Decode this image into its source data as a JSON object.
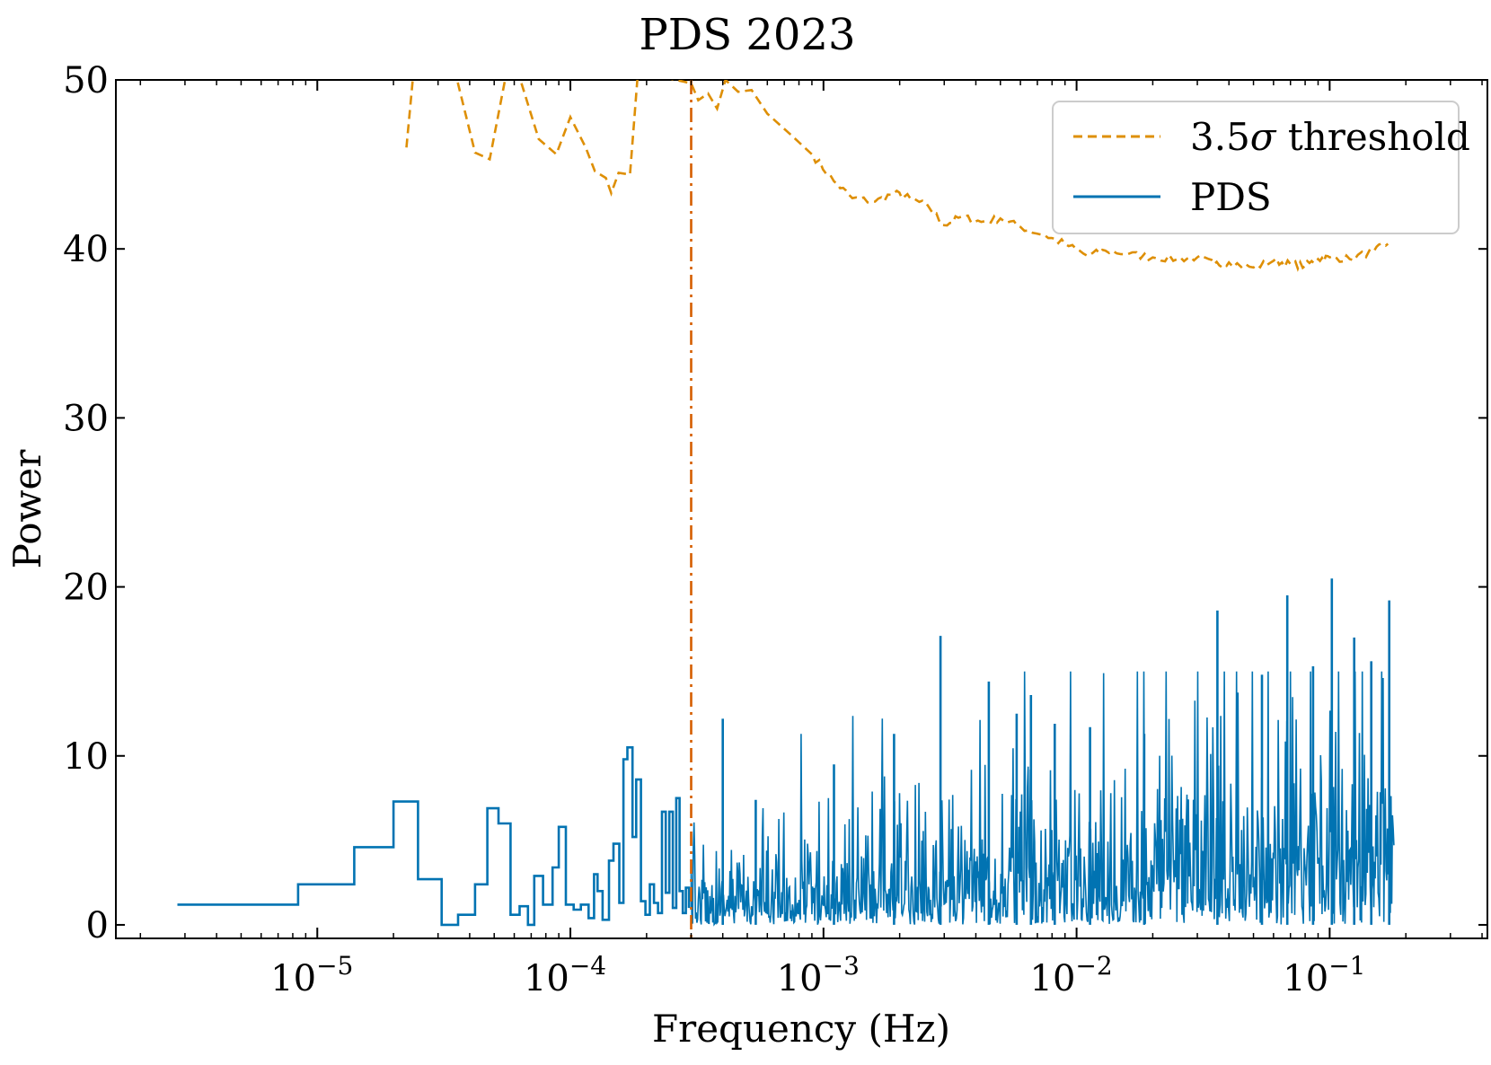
{
  "chart_data": {
    "type": "line",
    "title": "PDS 2023",
    "xlabel": "Frequency (Hz)",
    "ylabel": "Power",
    "xscale": "log",
    "xlim": [
      1.6e-06,
      0.42
    ],
    "ylim": [
      -0.8,
      50
    ],
    "grid": false,
    "legend_position": "top-right",
    "x_ticks": [
      {
        "value": 1e-05,
        "base": "10",
        "exp": "−5"
      },
      {
        "value": 0.0001,
        "base": "10",
        "exp": "−4"
      },
      {
        "value": 0.001,
        "base": "10",
        "exp": "−3"
      },
      {
        "value": 0.01,
        "base": "10",
        "exp": "−2"
      },
      {
        "value": 0.1,
        "base": "10",
        "exp": "−1"
      }
    ],
    "y_ticks": [
      0,
      10,
      20,
      30,
      40,
      50
    ],
    "vline": {
      "x": 0.0003,
      "style": "dash-dot",
      "color": "#d55e00"
    },
    "series": [
      {
        "name": "3.5σ threshold",
        "label_main": "3.5",
        "label_symbol": "σ",
        "label_rest": " threshold",
        "style": "dashed",
        "color": "#de8f05",
        "points": [
          [
            2.25e-05,
            46.0
          ],
          [
            2.4e-05,
            50.5
          ],
          [
            3.5e-05,
            50.5
          ],
          [
            4.2e-05,
            45.7
          ],
          [
            4.8e-05,
            45.3
          ],
          [
            5.6e-05,
            50.5
          ],
          [
            6.2e-05,
            50.5
          ],
          [
            7.5e-05,
            46.5
          ],
          [
            8.8e-05,
            45.6
          ],
          [
            0.0001,
            47.8
          ],
          [
            0.000115,
            46.0
          ],
          [
            0.000125,
            44.6
          ],
          [
            0.000138,
            44.2
          ],
          [
            0.000145,
            43.3
          ],
          [
            0.000155,
            44.5
          ],
          [
            0.000172,
            44.4
          ],
          [
            0.000185,
            50.5
          ],
          [
            0.0003,
            49.8
          ],
          [
            0.00032,
            48.8
          ],
          [
            0.00035,
            49.2
          ],
          [
            0.00038,
            48.3
          ],
          [
            0.00041,
            50.0
          ],
          [
            0.00046,
            49.3
          ],
          [
            0.00052,
            49.4
          ],
          [
            0.0006,
            48.0
          ],
          [
            0.00075,
            46.7
          ],
          [
            0.0009,
            45.6
          ],
          [
            0.0011,
            44.0
          ],
          [
            0.0013,
            43.0
          ],
          [
            0.0016,
            42.8
          ],
          [
            0.0019,
            43.3
          ],
          [
            0.0022,
            43.0
          ],
          [
            0.0026,
            42.5
          ],
          [
            0.003,
            41.4
          ],
          [
            0.0035,
            41.9
          ],
          [
            0.0042,
            41.6
          ],
          [
            0.005,
            41.8
          ],
          [
            0.006,
            41.3
          ],
          [
            0.0075,
            40.8
          ],
          [
            0.009,
            40.3
          ],
          [
            0.011,
            39.6
          ],
          [
            0.013,
            39.9
          ],
          [
            0.016,
            39.7
          ],
          [
            0.02,
            39.5
          ],
          [
            0.025,
            39.4
          ],
          [
            0.03,
            39.5
          ],
          [
            0.035,
            39.1
          ],
          [
            0.04,
            39.2
          ],
          [
            0.05,
            38.9
          ],
          [
            0.06,
            39.3
          ],
          [
            0.07,
            39.1
          ],
          [
            0.08,
            39.0
          ],
          [
            0.09,
            39.4
          ],
          [
            0.1,
            39.5
          ],
          [
            0.12,
            39.4
          ],
          [
            0.15,
            39.9
          ],
          [
            0.17,
            40.3
          ]
        ]
      },
      {
        "name": "PDS",
        "label_main": "PDS",
        "label_symbol": "",
        "label_rest": "",
        "style": "solid",
        "color": "#0173b2",
        "steps": [
          [
            2.8e-06,
            1.2
          ],
          [
            8.4e-06,
            2.4
          ],
          [
            1.4e-05,
            4.6
          ],
          [
            2e-05,
            7.3
          ],
          [
            2.4e-05,
            7.3
          ],
          [
            2.5e-05,
            2.7
          ],
          [
            3.1e-05,
            0.0
          ],
          [
            3.6e-05,
            0.6
          ],
          [
            4.2e-05,
            2.4
          ],
          [
            4.7e-05,
            6.9
          ],
          [
            5.2e-05,
            6.0
          ],
          [
            5.8e-05,
            0.6
          ],
          [
            6.3e-05,
            1.1
          ],
          [
            6.8e-05,
            0.0
          ],
          [
            7.2e-05,
            2.9
          ],
          [
            7.8e-05,
            1.2
          ],
          [
            8.5e-05,
            3.4
          ],
          [
            9e-05,
            5.8
          ],
          [
            9.6e-05,
            1.2
          ],
          [
            0.000103,
            0.9
          ],
          [
            0.00011,
            1.2
          ],
          [
            0.000118,
            0.4
          ],
          [
            0.000124,
            3.0
          ],
          [
            0.000128,
            2.0
          ],
          [
            0.000134,
            0.3
          ],
          [
            0.000142,
            3.8
          ],
          [
            0.000148,
            4.8
          ],
          [
            0.000156,
            1.3
          ],
          [
            0.000162,
            9.8
          ],
          [
            0.000168,
            10.5
          ],
          [
            0.000176,
            5.2
          ],
          [
            0.000182,
            8.6
          ],
          [
            0.00019,
            1.4
          ],
          [
            0.000198,
            0.6
          ],
          [
            0.000206,
            2.4
          ],
          [
            0.000214,
            1.3
          ],
          [
            0.000222,
            0.7
          ],
          [
            0.00023,
            6.7
          ],
          [
            0.000238,
            1.9
          ],
          [
            0.000246,
            6.7
          ],
          [
            0.000254,
            1.0
          ],
          [
            0.000262,
            7.5
          ],
          [
            0.00027,
            2.0
          ],
          [
            0.000278,
            0.7
          ],
          [
            0.000286,
            2.2
          ],
          [
            0.000294,
            1.0
          ]
        ]
      }
    ],
    "pds_dense": {
      "x_start": 0.0003,
      "x_end": 0.18,
      "peaks": [
        [
          0.0004,
          12.2
        ],
        [
          0.00054,
          7.4
        ],
        [
          0.0011,
          9.5
        ],
        [
          0.0019,
          11.3
        ],
        [
          0.0029,
          17.1
        ],
        [
          0.0045,
          14.4
        ],
        [
          0.0058,
          12.5
        ],
        [
          0.0066,
          13.6
        ],
        [
          0.0082,
          11.9
        ],
        [
          0.0113,
          11.7
        ],
        [
          0.0185,
          11.3
        ],
        [
          0.036,
          18.6
        ],
        [
          0.054,
          14.8
        ],
        [
          0.068,
          19.5
        ],
        [
          0.086,
          15.3
        ],
        [
          0.102,
          20.5
        ],
        [
          0.125,
          17.0
        ],
        [
          0.146,
          15.6
        ],
        [
          0.172,
          19.2
        ]
      ]
    }
  }
}
